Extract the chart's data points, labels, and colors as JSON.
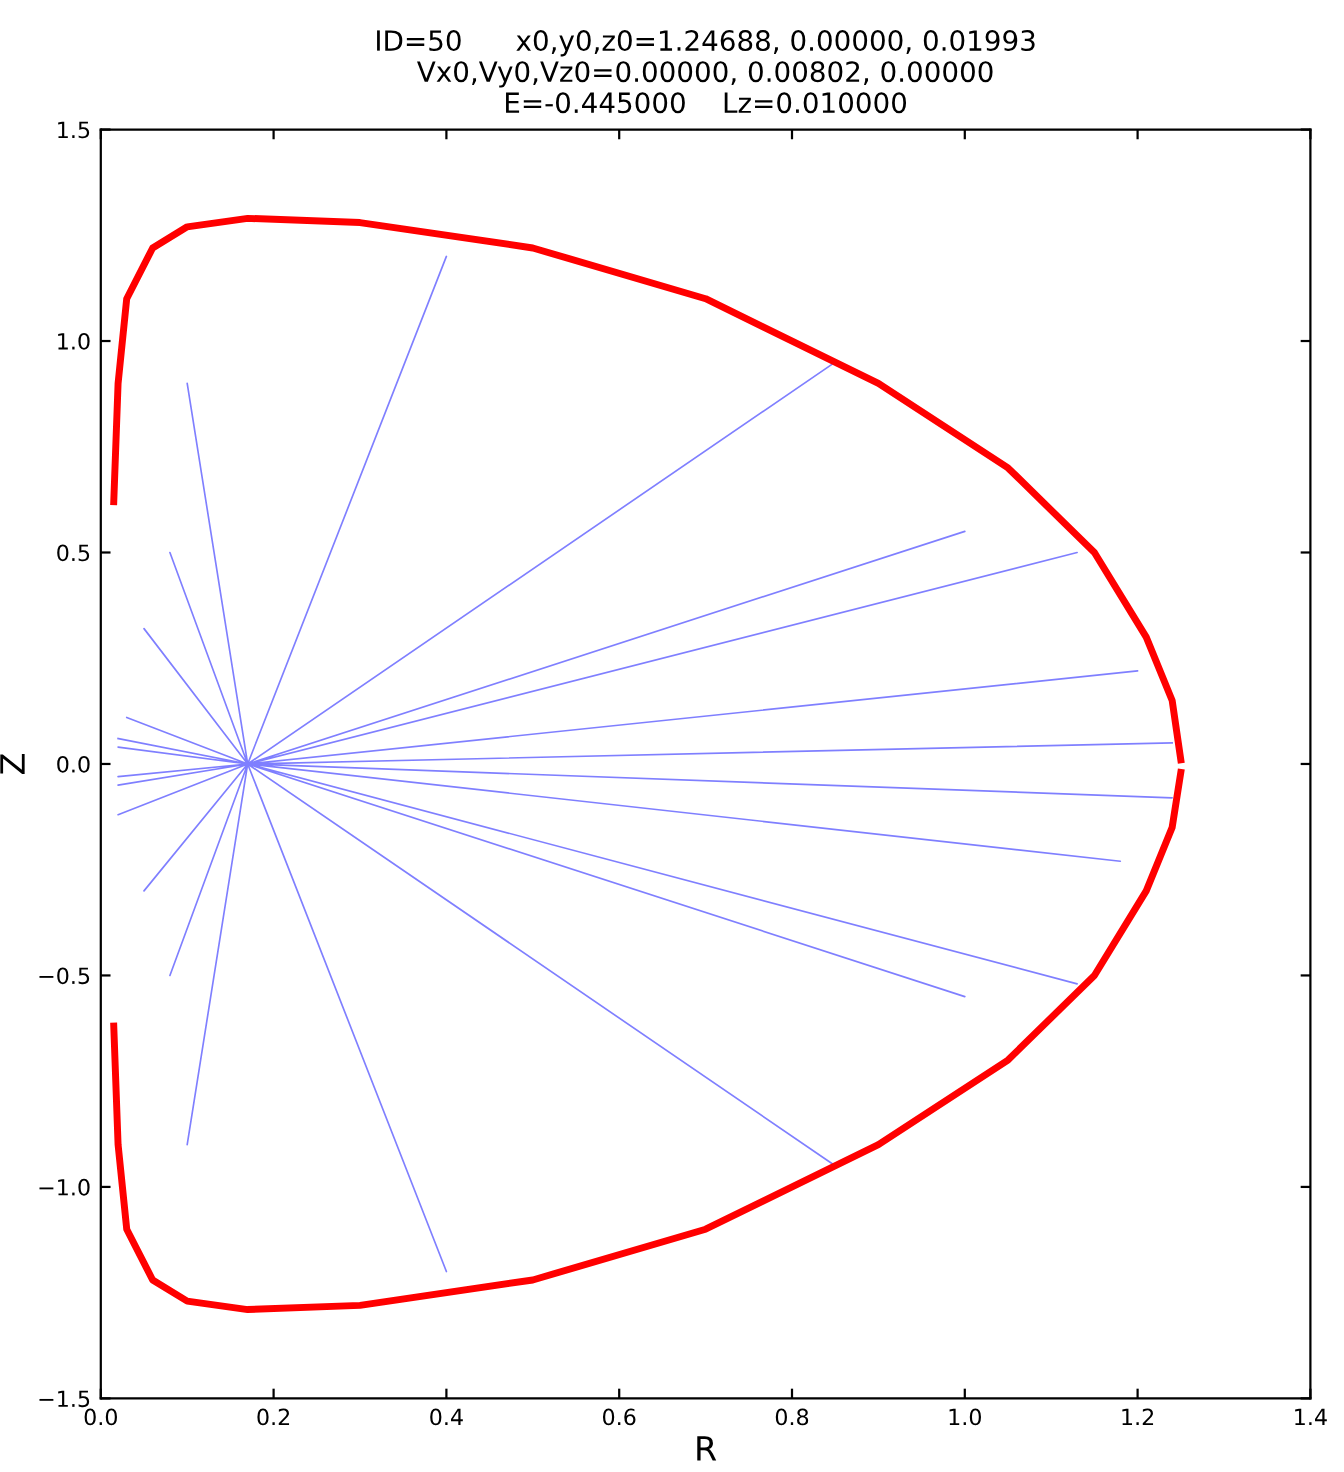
{
  "chart_data": {
    "type": "line",
    "title": "ID=50      x0,y0,z0=1.24688, 0.00000, 0.01993\nVx0,Vy0,Vz0=0.00000, 0.00802, 0.00000\nE=-0.445000    Lz=0.010000",
    "xlabel": "R",
    "ylabel": "Z",
    "xlim": [
      0.0,
      1.4
    ],
    "ylim": [
      -1.5,
      1.5
    ],
    "xticks": [
      {
        "value": 0.0,
        "label": "0.0"
      },
      {
        "value": 0.2,
        "label": "0.2"
      },
      {
        "value": 0.4,
        "label": "0.4"
      },
      {
        "value": 0.6,
        "label": "0.6"
      },
      {
        "value": 0.8,
        "label": "0.8"
      },
      {
        "value": 1.0,
        "label": "1.0"
      },
      {
        "value": 1.2,
        "label": "1.2"
      },
      {
        "value": 1.4,
        "label": "1.4"
      }
    ],
    "yticks": [
      {
        "value": -1.5,
        "label": "−1.5"
      },
      {
        "value": -1.0,
        "label": "−1.0"
      },
      {
        "value": -0.5,
        "label": "−0.5"
      },
      {
        "value": 0.0,
        "label": "0.0"
      },
      {
        "value": 0.5,
        "label": "0.5"
      },
      {
        "value": 1.0,
        "label": "1.0"
      },
      {
        "value": 1.5,
        "label": "1.5"
      }
    ],
    "grid": false,
    "legend": false,
    "marker": "none",
    "line_style": "solid",
    "series": [
      {
        "color": "#0000ff",
        "x": [
          1.24,
          0.17,
          0.02,
          0.17,
          1.24,
          0.17,
          0.02,
          0.17,
          1.2,
          0.17,
          0.02,
          0.17,
          1.18,
          0.17,
          0.03,
          0.17,
          1.13,
          0.17,
          0.05,
          0.17,
          1.13,
          0.17,
          0.05,
          0.17,
          0.85,
          0.17,
          0.08,
          0.17,
          0.85,
          0.17,
          0.08,
          0.17,
          0.4,
          0.17,
          0.1,
          0.17,
          0.4,
          0.17,
          0.1,
          0.17,
          1.0,
          0.17,
          0.02,
          0.17,
          1.0,
          0.17,
          0.02
        ],
        "values": [
          0.05,
          0.0,
          -0.03,
          0.0,
          -0.08,
          0.0,
          0.04,
          0.0,
          0.22,
          0.0,
          -0.12,
          0.0,
          -0.23,
          0.0,
          0.11,
          0.0,
          0.5,
          0.0,
          -0.3,
          0.0,
          -0.52,
          0.0,
          0.32,
          0.0,
          0.95,
          0.0,
          -0.5,
          0.0,
          -0.95,
          0.0,
          0.5,
          0.0,
          1.2,
          0.0,
          -0.9,
          0.0,
          -1.2,
          0.0,
          0.9,
          0.0,
          0.55,
          0.0,
          -0.05,
          0.0,
          -0.55,
          0.0,
          0.06
        ]
      },
      {
        "color": "#ff0000",
        "x": [
          0.015,
          0.02,
          0.03,
          0.06,
          0.1,
          0.17,
          0.3,
          0.5,
          0.7,
          0.9,
          1.05,
          1.15,
          1.21,
          1.24,
          1.25
        ],
        "values": [
          0.62,
          0.9,
          1.1,
          1.22,
          1.27,
          1.29,
          1.28,
          1.22,
          1.1,
          0.9,
          0.7,
          0.5,
          0.3,
          0.15,
          0.01
        ]
      },
      {
        "color": "#ff0000",
        "x": [
          0.015,
          0.02,
          0.03,
          0.06,
          0.1,
          0.17,
          0.3,
          0.5,
          0.7,
          0.9,
          1.05,
          1.15,
          1.21,
          1.24,
          1.25
        ],
        "values": [
          -0.62,
          -0.9,
          -1.1,
          -1.22,
          -1.27,
          -1.29,
          -1.28,
          -1.22,
          -1.1,
          -0.9,
          -0.7,
          -0.5,
          -0.3,
          -0.15,
          -0.02
        ]
      }
    ]
  }
}
